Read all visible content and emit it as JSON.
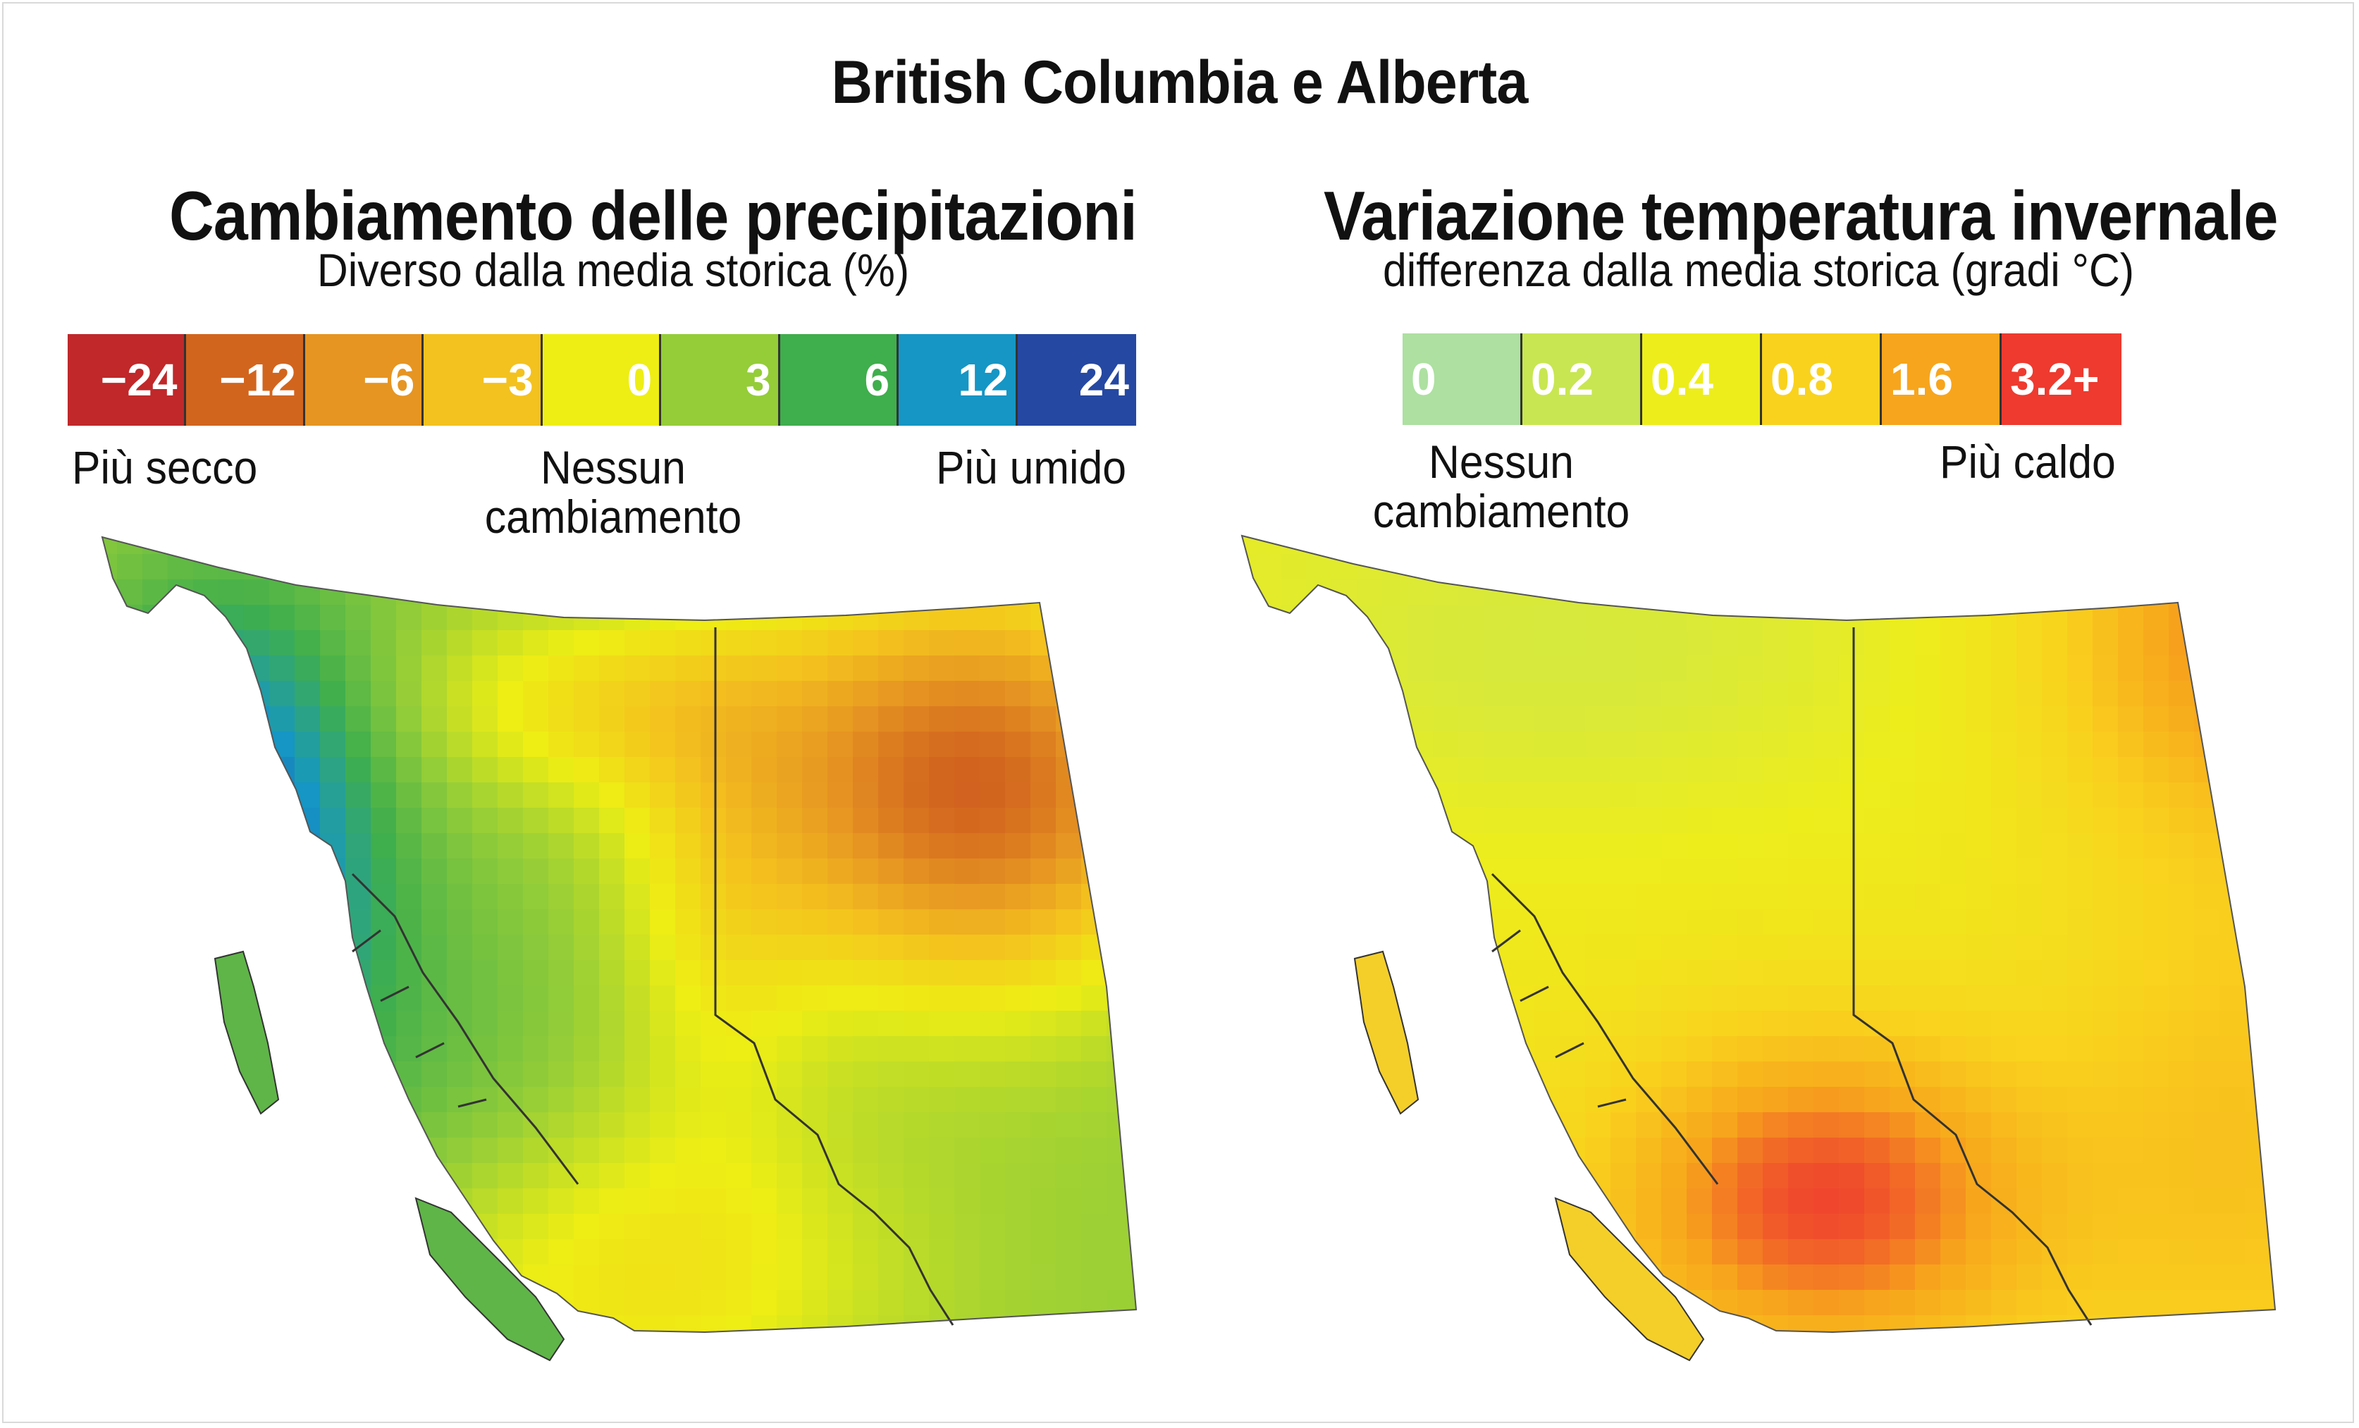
{
  "title": "British Columbia e Alberta",
  "left_panel": {
    "title": "Cambiamento delle precipitazioni",
    "subtitle": "Diverso dalla media storica (%)",
    "legend": [
      {
        "label": "−24",
        "color": "#c0282a"
      },
      {
        "label": "−12",
        "color": "#d2651e"
      },
      {
        "label": "−6",
        "color": "#e69522"
      },
      {
        "label": "−3",
        "color": "#f4c21e"
      },
      {
        "label": "0",
        "color": "#eeee14"
      },
      {
        "label": "3",
        "color": "#94cd38"
      },
      {
        "label": "6",
        "color": "#3fae4c"
      },
      {
        "label": "12",
        "color": "#1596c5"
      },
      {
        "label": "24",
        "color": "#2548a2"
      }
    ],
    "label_dry": "Più secco",
    "label_none_1": "Nessun",
    "label_none_2": "cambiamento",
    "label_wet": "Più umido"
  },
  "right_panel": {
    "title": "Variazione temperatura invernale",
    "subtitle": "differenza dalla media storica (gradi °C)",
    "legend": [
      {
        "label": "0",
        "color": "#ade0a1"
      },
      {
        "label": "0.2",
        "color": "#c8e651"
      },
      {
        "label": "0.4",
        "color": "#eded1c"
      },
      {
        "label": "0.8",
        "color": "#f9d21d"
      },
      {
        "label": "1.6",
        "color": "#f7a51c"
      },
      {
        "label": "3.2+",
        "color": "#ee3a2f"
      }
    ],
    "label_none_1": "Nessun",
    "label_none_2": "cambiamento",
    "label_warm": "Più caldo"
  }
}
